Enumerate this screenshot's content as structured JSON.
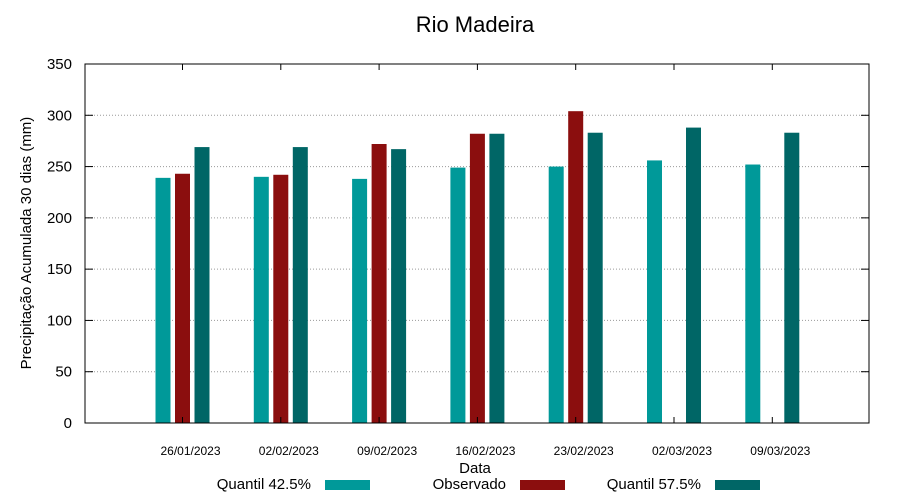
{
  "chart_data": {
    "type": "bar",
    "title": "Rio Madeira",
    "xlabel": "Data",
    "ylabel": "Precipitação Acumulada 30 dias (mm)",
    "ylim": [
      0,
      350
    ],
    "yticks": [
      0,
      50,
      100,
      150,
      200,
      250,
      300,
      350
    ],
    "grid": true,
    "legend_position": "bottom",
    "categories": [
      "26/01/2023",
      "02/02/2023",
      "09/02/2023",
      "16/02/2023",
      "23/02/2023",
      "02/03/2023",
      "09/03/2023"
    ],
    "series": [
      {
        "name": "Quantil 42.5%",
        "color": "#009999",
        "values": [
          239,
          240,
          238,
          249,
          250,
          256,
          252
        ]
      },
      {
        "name": "Observado",
        "color": "#8b0e0e",
        "values": [
          243,
          242,
          272,
          282,
          304,
          null,
          null
        ]
      },
      {
        "name": "Quantil 57.5%",
        "color": "#006666",
        "values": [
          269,
          269,
          267,
          282,
          283,
          288,
          283
        ]
      }
    ]
  }
}
